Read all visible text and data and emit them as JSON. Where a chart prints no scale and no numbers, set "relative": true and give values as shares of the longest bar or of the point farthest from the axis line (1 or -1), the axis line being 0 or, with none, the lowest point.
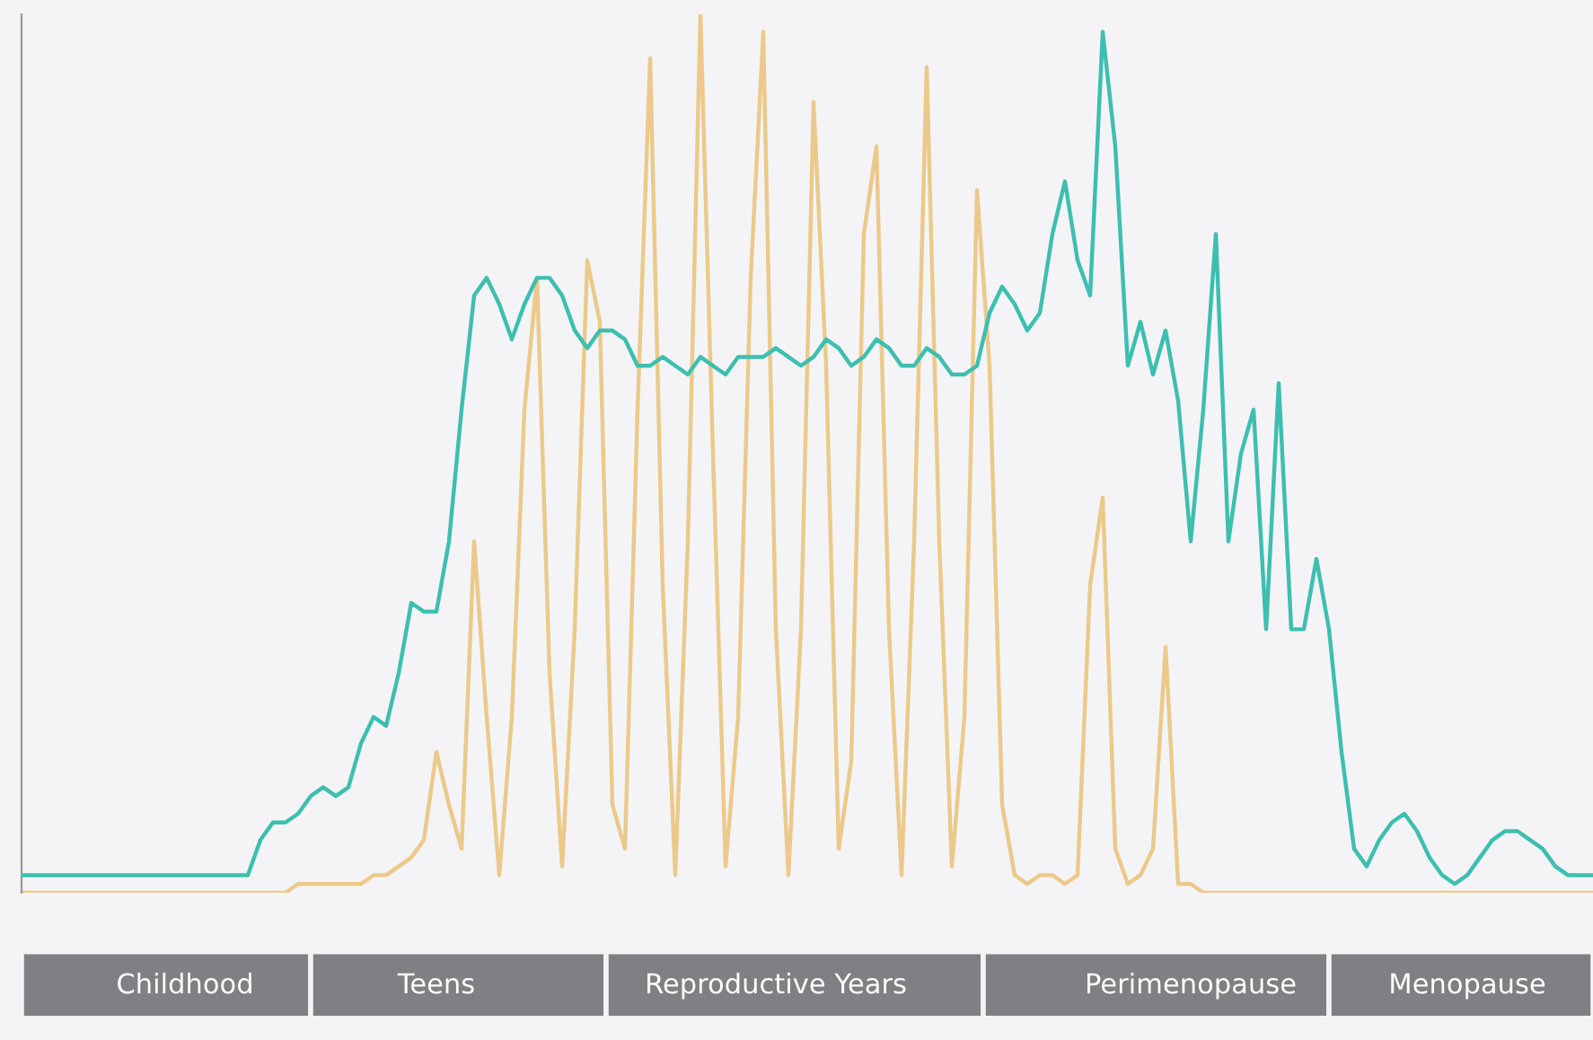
{
  "chart_data": {
    "type": "line",
    "relative": true,
    "legend": false,
    "marker": "none",
    "categories": [
      null,
      null,
      null,
      null,
      null,
      null,
      null,
      null,
      null,
      null,
      null,
      null,
      null,
      "Childhood",
      null,
      null,
      null,
      null,
      null,
      null,
      null,
      null,
      null,
      null,
      null,
      null,
      null,
      null,
      null,
      null,
      null,
      null,
      null,
      "Teens",
      null,
      null,
      null,
      null,
      null,
      null,
      null,
      null,
      null,
      null,
      null,
      null,
      null,
      null,
      null,
      null,
      null,
      null,
      null,
      null,
      null,
      null,
      null,
      null,
      null,
      null,
      "Reproductive Years",
      null,
      null,
      null,
      null,
      null,
      null,
      null,
      null,
      null,
      null,
      null,
      null,
      null,
      null,
      null,
      null,
      null,
      null,
      null,
      null,
      null,
      null,
      null,
      null,
      null,
      null,
      null,
      null,
      null,
      null,
      null,
      null,
      "Perimenopause",
      null,
      null,
      null,
      null,
      null,
      null,
      null,
      null,
      null,
      null,
      null,
      null,
      null,
      null,
      null,
      null,
      null,
      null,
      null,
      null,
      null,
      "Menopause",
      null,
      null,
      null,
      null,
      null,
      null,
      null,
      null,
      null,
      null
    ],
    "series": [
      {
        "color": "#ecc98a",
        "values": [
          0,
          0,
          0,
          0,
          0,
          0,
          0,
          0,
          0,
          0,
          0,
          0,
          0,
          0,
          0,
          0,
          0,
          0,
          0,
          0,
          0,
          0,
          0.01,
          0.01,
          0.01,
          0.01,
          0.01,
          0.01,
          0.02,
          0.02,
          0.03,
          0.04,
          0.06,
          0.16,
          0.1,
          0.05,
          0.4,
          0.2,
          0.02,
          0.2,
          0.55,
          0.7,
          0.25,
          0.03,
          0.3,
          0.72,
          0.65,
          0.1,
          0.05,
          0.55,
          0.95,
          0.35,
          0.02,
          0.4,
          1.0,
          0.5,
          0.03,
          0.2,
          0.7,
          0.98,
          0.3,
          0.02,
          0.3,
          0.9,
          0.6,
          0.05,
          0.15,
          0.75,
          0.85,
          0.3,
          0.02,
          0.4,
          0.94,
          0.4,
          0.03,
          0.2,
          0.8,
          0.6,
          0.1,
          0.02,
          0.01,
          0.02,
          0.02,
          0.01,
          0.02,
          0.35,
          0.45,
          0.05,
          0.01,
          0.02,
          0.05,
          0.28,
          0.01,
          0.01,
          0,
          0,
          0,
          0,
          0,
          0,
          0,
          0,
          0,
          0,
          0,
          0,
          0,
          0,
          0,
          0,
          0,
          0,
          0,
          0,
          0,
          0,
          0,
          0,
          0,
          0,
          0,
          0,
          0,
          0,
          0,
          0
        ]
      },
      {
        "color": "#3dbfb0",
        "values": [
          0.02,
          0.02,
          0.02,
          0.02,
          0.02,
          0.02,
          0.02,
          0.02,
          0.02,
          0.02,
          0.02,
          0.02,
          0.02,
          0.02,
          0.02,
          0.02,
          0.02,
          0.02,
          0.02,
          0.06,
          0.08,
          0.08,
          0.09,
          0.11,
          0.12,
          0.11,
          0.12,
          0.17,
          0.2,
          0.19,
          0.25,
          0.33,
          0.32,
          0.32,
          0.4,
          0.55,
          0.68,
          0.7,
          0.67,
          0.63,
          0.67,
          0.7,
          0.7,
          0.68,
          0.64,
          0.62,
          0.64,
          0.64,
          0.63,
          0.6,
          0.6,
          0.61,
          0.6,
          0.59,
          0.61,
          0.6,
          0.59,
          0.61,
          0.61,
          0.61,
          0.62,
          0.61,
          0.6,
          0.61,
          0.63,
          0.62,
          0.6,
          0.61,
          0.63,
          0.62,
          0.6,
          0.6,
          0.62,
          0.61,
          0.59,
          0.59,
          0.6,
          0.66,
          0.69,
          0.67,
          0.64,
          0.66,
          0.75,
          0.81,
          0.72,
          0.68,
          0.98,
          0.85,
          0.6,
          0.65,
          0.59,
          0.64,
          0.56,
          0.4,
          0.55,
          0.75,
          0.4,
          0.5,
          0.55,
          0.3,
          0.58,
          0.3,
          0.3,
          0.38,
          0.3,
          0.16,
          0.05,
          0.03,
          0.06,
          0.08,
          0.09,
          0.07,
          0.04,
          0.02,
          0.01,
          0.02,
          0.04,
          0.06,
          0.07,
          0.07,
          0.06,
          0.05,
          0.03,
          0.02,
          0.02,
          0.02
        ]
      }
    ],
    "line_style": "solid"
  }
}
